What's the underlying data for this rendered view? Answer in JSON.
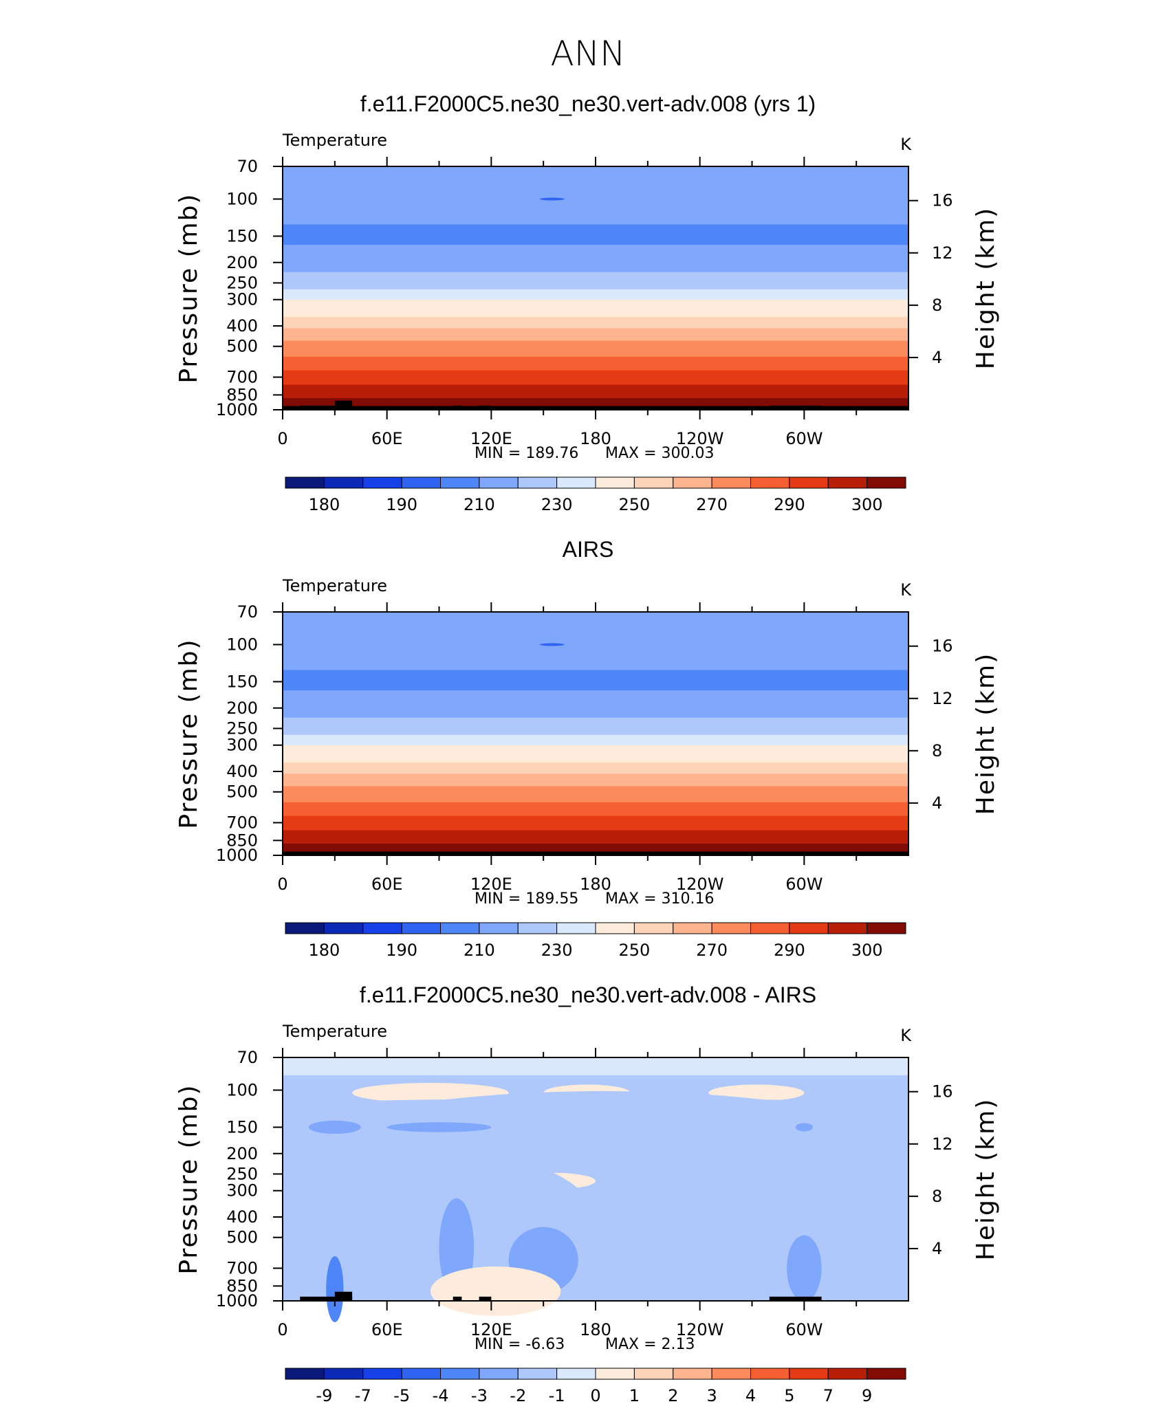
{
  "figure": {
    "main_title": "ANN"
  },
  "colorbar_colors": [
    "#0a1a7a",
    "#0c2ab8",
    "#1640e8",
    "#2f63f2",
    "#4f86f7",
    "#7fa7fb",
    "#aec8fc",
    "#d9e8fd",
    "#fdecdc",
    "#fdd3b8",
    "#fdb48f",
    "#fb8b5c",
    "#f65f31",
    "#e43b14",
    "#b81d08",
    "#820c03"
  ],
  "chart_data": [
    {
      "type": "heatmap",
      "title": "f.e11.F2000C5.ne30_ne30.vert-adv.008 (yrs 1)",
      "variable_label": "Temperature",
      "units_label": "K",
      "xlabel": "",
      "ylabel": "Pressure (mb)",
      "ylabel_right": "Height (km)",
      "x_ticks": [
        "0",
        "60E",
        "120E",
        "180",
        "120W",
        "60W"
      ],
      "y_ticks": [
        "70",
        "100",
        "150",
        "200",
        "250",
        "300",
        "400",
        "500",
        "700",
        "850",
        "1000"
      ],
      "y_ticks_right": [
        "16",
        "12",
        "8",
        "4"
      ],
      "min_label": "MIN  =  189.76",
      "max_label": "MAX  =  300.03",
      "colorbar_labels": [
        "180",
        "190",
        "210",
        "230",
        "250",
        "270",
        "290",
        "300"
      ],
      "band_pressures": [
        70,
        132,
        165,
        222,
        268,
        300,
        362,
        410,
        470,
        560,
        650,
        760,
        880,
        960,
        1000
      ],
      "band_colors": [
        5,
        4,
        5,
        6,
        7,
        8,
        9,
        10,
        11,
        12,
        13,
        14,
        15,
        16
      ],
      "terrain": [
        [
          10,
          40,
          955
        ],
        [
          30,
          40,
          905
        ],
        [
          98,
          103,
          955
        ],
        [
          113,
          120,
          955
        ],
        [
          280,
          310,
          955
        ]
      ]
    },
    {
      "type": "heatmap",
      "title": "AIRS",
      "variable_label": "Temperature",
      "units_label": "K",
      "xlabel": "",
      "ylabel": "Pressure (mb)",
      "ylabel_right": "Height (km)",
      "x_ticks": [
        "0",
        "60E",
        "120E",
        "180",
        "120W",
        "60W"
      ],
      "y_ticks": [
        "70",
        "100",
        "150",
        "200",
        "250",
        "300",
        "400",
        "500",
        "700",
        "850",
        "1000"
      ],
      "y_ticks_right": [
        "16",
        "12",
        "8",
        "4"
      ],
      "min_label": "MIN  =  189.55",
      "max_label": "MAX  =  310.16",
      "colorbar_labels": [
        "180",
        "190",
        "210",
        "230",
        "250",
        "270",
        "290",
        "300"
      ],
      "band_pressures": [
        70,
        132,
        165,
        222,
        268,
        300,
        362,
        410,
        470,
        560,
        650,
        760,
        880,
        960,
        1000
      ],
      "band_colors": [
        5,
        4,
        5,
        6,
        7,
        8,
        9,
        10,
        11,
        12,
        13,
        14,
        15,
        16
      ],
      "terrain": [
        [
          26,
          33,
          975
        ]
      ]
    },
    {
      "type": "heatmap",
      "title": "f.e11.F2000C5.ne30_ne30.vert-adv.008 - AIRS",
      "variable_label": "Temperature",
      "units_label": "K",
      "xlabel": "",
      "ylabel": "Pressure (mb)",
      "ylabel_right": "Height (km)",
      "x_ticks": [
        "0",
        "60E",
        "120E",
        "180",
        "120W",
        "60W"
      ],
      "y_ticks": [
        "70",
        "100",
        "150",
        "200",
        "250",
        "300",
        "400",
        "500",
        "700",
        "850",
        "1000"
      ],
      "y_ticks_right": [
        "16",
        "12",
        "8",
        "4"
      ],
      "min_label": "MIN  =    -6.63",
      "max_label": "MAX  =      2.13",
      "colorbar_labels": [
        "-9",
        "-7",
        "-5",
        "-4",
        "-3",
        "-2",
        "-1",
        "0",
        "1",
        "2",
        "3",
        "4",
        "5",
        "7",
        "9"
      ],
      "band_pressures": [
        70,
        85,
        1000
      ],
      "band_colors": [
        7,
        6
      ],
      "terrain": [
        [
          10,
          40,
          955
        ],
        [
          30,
          40,
          905
        ],
        [
          98,
          103,
          955
        ],
        [
          113,
          120,
          955
        ],
        [
          280,
          310,
          955
        ]
      ]
    }
  ]
}
